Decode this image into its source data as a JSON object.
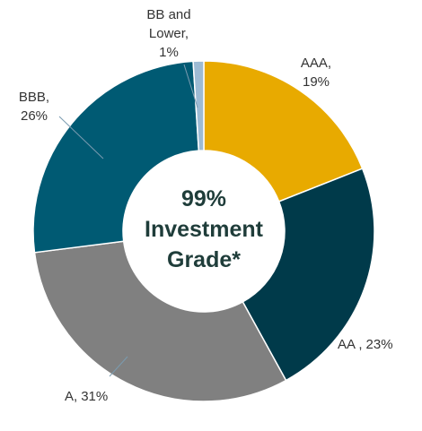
{
  "chart_data": {
    "type": "donut",
    "categories": [
      "AAA,",
      "AA ,",
      "A,",
      "BBB,",
      "BB and Lower,"
    ],
    "values": [
      19,
      23,
      31,
      26,
      1
    ],
    "value_labels": [
      "19%",
      "23%",
      "31%",
      "26%",
      "1%"
    ],
    "colors": [
      "#e8aa00",
      "#003a4a",
      "#808080",
      "#005a73",
      "#9dbbd4"
    ],
    "center_text": "99% Investment Grade*"
  }
}
